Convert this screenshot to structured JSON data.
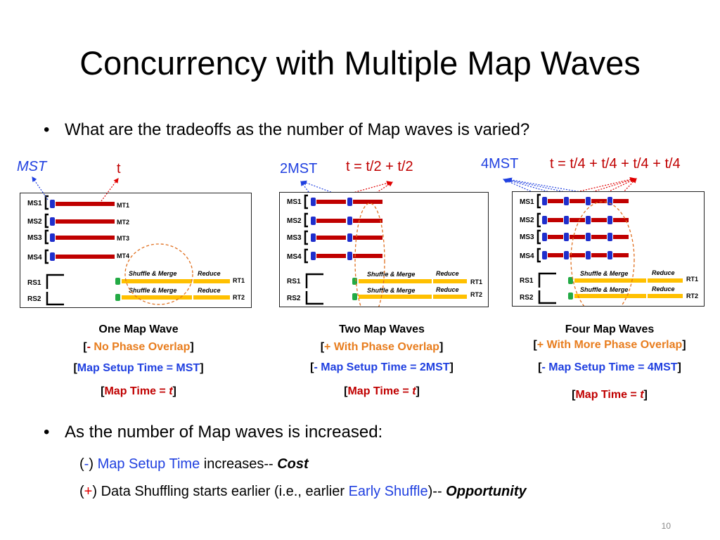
{
  "title": "Concurrency with Multiple Map Waves",
  "question": "What are the tradeoffs as the number of Map waves is varied?",
  "diagrams": [
    {
      "mst_label": "MST",
      "t_label": "t",
      "map_tasks": [
        "MS1",
        "MS2",
        "MS3",
        "MS4"
      ],
      "map_bar_labels": [
        "MT1",
        "MT2",
        "MT3",
        "MT4"
      ],
      "reduce_tasks": [
        "RS1",
        "RS2"
      ],
      "reduce_bar_labels": [
        "RT1",
        "RT2"
      ],
      "shuffle_label": "Shuffle & Merge",
      "reduce_label": "Reduce",
      "caption": "One Map Wave",
      "phase": {
        "open": "[",
        "sign": "- ",
        "text": "No Phase Overlap",
        "close": "]"
      },
      "setup": {
        "open": "[",
        "sign": "",
        "text": "Map Setup Time = MST",
        "close": "]"
      },
      "maptime": {
        "open": "[",
        "text": "Map Time = ",
        "var": "t",
        "close": "]"
      }
    },
    {
      "mst_label": "2MST",
      "t_label": "t = t/2 + t/2",
      "map_tasks": [
        "MS1",
        "MS2",
        "MS3",
        "MS4"
      ],
      "reduce_tasks": [
        "RS1",
        "RS2"
      ],
      "reduce_bar_labels": [
        "RT1",
        "RT2"
      ],
      "shuffle_label": "Shuffle & Merge",
      "reduce_label": "Reduce",
      "caption": "Two Map Waves",
      "phase": {
        "open": "[",
        "sign": "+ ",
        "text": "With Phase Overlap",
        "close": "]"
      },
      "setup": {
        "open": "[",
        "sign": "- ",
        "text": "Map Setup Time = 2MST",
        "close": "]"
      },
      "maptime": {
        "open": "[",
        "text": "Map Time = ",
        "var": "t",
        "close": "]"
      }
    },
    {
      "mst_label": "4MST",
      "t_label": "t = t/4 + t/4 + t/4 + t/4",
      "map_tasks": [
        "MS1",
        "MS2",
        "MS3",
        "MS4"
      ],
      "reduce_tasks": [
        "RS1",
        "RS2"
      ],
      "reduce_bar_labels": [
        "RT1",
        "RT2"
      ],
      "shuffle_label": "Shuffle & Merge",
      "reduce_label": "Reduce",
      "caption": "Four Map Waves",
      "phase": {
        "open": "[",
        "sign": "+ ",
        "text": "With More Phase Overlap",
        "close": "]"
      },
      "setup": {
        "open": "[",
        "sign": "- ",
        "text": "Map Setup Time = 4MST",
        "close": "]"
      },
      "maptime": {
        "open": "[",
        "text": "Map Time = ",
        "var": "t",
        "close": "]"
      }
    }
  ],
  "conclusion": {
    "heading": "As the number of Map waves is increased:",
    "line1": {
      "open": "(",
      "sign": "-",
      "close": ")",
      "highlight": " Map Setup Time",
      "rest": " increases-- ",
      "emph": "Cost"
    },
    "line2": {
      "open": "(",
      "sign": "+",
      "close": ")",
      "rest": " Data Shuffling starts earlier (i.e., earlier ",
      "highlight": "Early Shuffle",
      "tail": ")-- ",
      "emph": "Opportunity"
    }
  },
  "page_number": "10",
  "colors": {
    "map_bar": "#c00000",
    "setup_block": "#1f2ecc",
    "shuffle_bar": "#ffc000",
    "shuffle_start": "#22aa44",
    "ellipse": "#e07020",
    "mst_arrow": "#2040e0",
    "t_arrow": "#e00000"
  }
}
